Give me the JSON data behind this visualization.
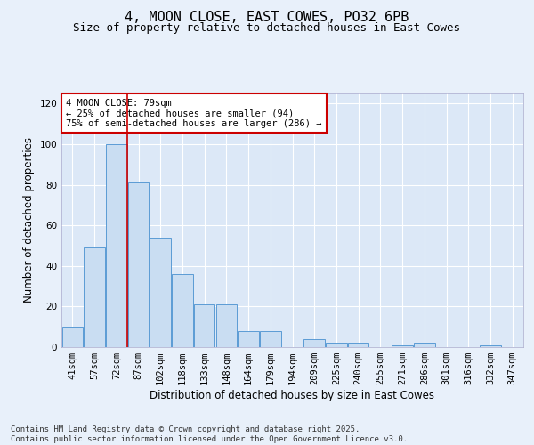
{
  "title_line1": "4, MOON CLOSE, EAST COWES, PO32 6PB",
  "title_line2": "Size of property relative to detached houses in East Cowes",
  "xlabel": "Distribution of detached houses by size in East Cowes",
  "ylabel": "Number of detached properties",
  "categories": [
    "41sqm",
    "57sqm",
    "72sqm",
    "87sqm",
    "102sqm",
    "118sqm",
    "133sqm",
    "148sqm",
    "164sqm",
    "179sqm",
    "194sqm",
    "209sqm",
    "225sqm",
    "240sqm",
    "255sqm",
    "271sqm",
    "286sqm",
    "301sqm",
    "316sqm",
    "332sqm",
    "347sqm"
  ],
  "values": [
    10,
    49,
    100,
    81,
    54,
    36,
    21,
    21,
    8,
    8,
    0,
    4,
    2,
    2,
    0,
    1,
    2,
    0,
    0,
    1,
    0
  ],
  "bar_color": "#c9ddf2",
  "bar_edge_color": "#5b9bd5",
  "background_color": "#e8f0fa",
  "plot_bg_color": "#dce8f7",
  "grid_color": "#ffffff",
  "vline_x_between": 2,
  "vline_color": "#cc0000",
  "annotation_text": "4 MOON CLOSE: 79sqm\n← 25% of detached houses are smaller (94)\n75% of semi-detached houses are larger (286) →",
  "annotation_box_color": "#ffffff",
  "annotation_box_edge_color": "#cc0000",
  "ylim": [
    0,
    125
  ],
  "yticks": [
    0,
    20,
    40,
    60,
    80,
    100,
    120
  ],
  "footer_text": "Contains HM Land Registry data © Crown copyright and database right 2025.\nContains public sector information licensed under the Open Government Licence v3.0.",
  "title_fontsize": 11,
  "subtitle_fontsize": 9,
  "axis_label_fontsize": 8.5,
  "tick_fontsize": 7.5,
  "annotation_fontsize": 7.5,
  "footer_fontsize": 6.5
}
